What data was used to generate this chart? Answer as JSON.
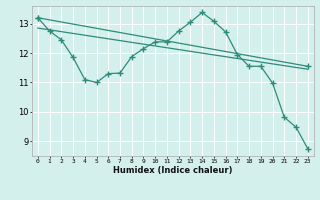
{
  "line_color": "#2e8b7a",
  "bg_color": "#d4f0ec",
  "grid_color": "#ffffff",
  "xlabel": "Humidex (Indice chaleur)",
  "xlim": [
    -0.5,
    23.5
  ],
  "ylim": [
    8.5,
    13.6
  ],
  "yticks": [
    9,
    10,
    11,
    12,
    13
  ],
  "xticks": [
    0,
    1,
    2,
    3,
    4,
    5,
    6,
    7,
    8,
    9,
    10,
    11,
    12,
    13,
    14,
    15,
    16,
    17,
    18,
    19,
    20,
    21,
    22,
    23
  ],
  "line1_no_marker": {
    "x": [
      0,
      23
    ],
    "y": [
      13.2,
      11.55
    ]
  },
  "line2_no_marker": {
    "x": [
      0,
      23
    ],
    "y": [
      12.85,
      11.45
    ]
  },
  "line3_marker": {
    "x": [
      0,
      1,
      2,
      3,
      4,
      5,
      6,
      7,
      8,
      9,
      10,
      11,
      12,
      13,
      14,
      15,
      16,
      17,
      18,
      19,
      20,
      21,
      22,
      23
    ],
    "y": [
      13.2,
      12.75,
      12.45,
      11.85,
      11.1,
      11.0,
      11.3,
      11.32,
      11.88,
      12.15,
      12.38,
      12.38,
      12.75,
      13.05,
      13.38,
      13.08,
      12.72,
      11.95,
      11.55,
      11.55,
      10.98,
      9.82,
      9.48,
      8.75
    ]
  },
  "line4_marker": {
    "x": [
      1,
      2,
      3,
      4,
      5,
      6,
      7,
      18,
      19,
      22,
      23
    ],
    "y": [
      12.75,
      12.45,
      11.85,
      11.1,
      11.0,
      11.3,
      11.32,
      11.55,
      11.55,
      9.48,
      8.75
    ]
  }
}
